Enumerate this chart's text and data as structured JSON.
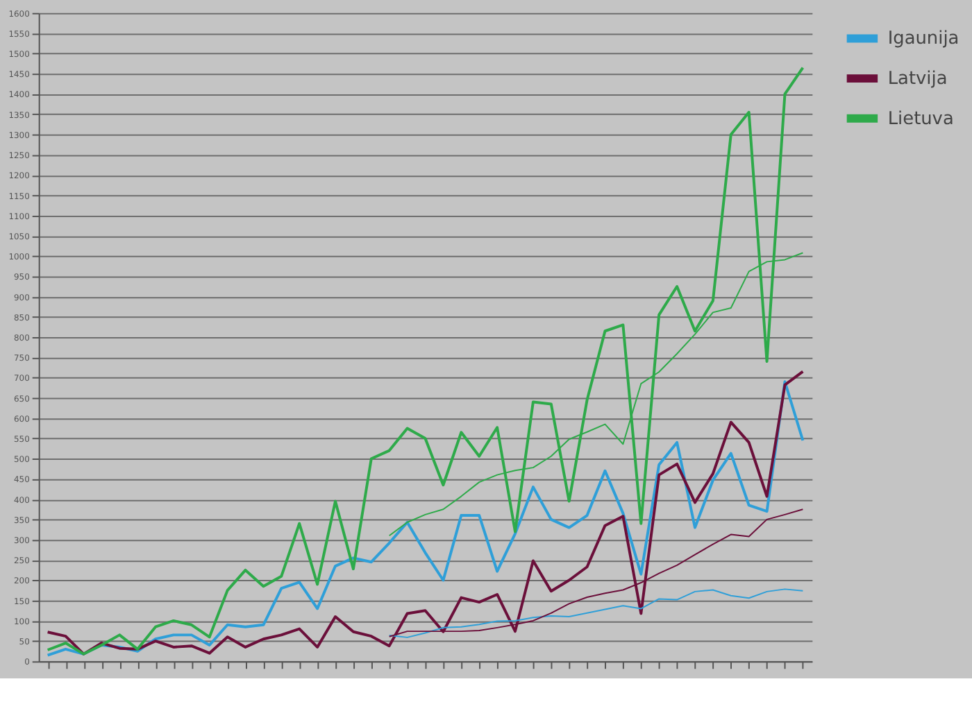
{
  "chart_data": {
    "type": "line",
    "categories": [
      null,
      null,
      null,
      null,
      null,
      null,
      null,
      null,
      null,
      null,
      null,
      null,
      null,
      null,
      null,
      null,
      null,
      null,
      null,
      null,
      null,
      null,
      null,
      null,
      null,
      null,
      null,
      null,
      null,
      null,
      null,
      null,
      null,
      null,
      null,
      null,
      null,
      null,
      null,
      null,
      null,
      null,
      null
    ],
    "series": [
      {
        "name": "Igaunija",
        "color": "#2f9fd8",
        "values": [
          15,
          30,
          18,
          40,
          35,
          25,
          55,
          65,
          65,
          40,
          90,
          85,
          90,
          180,
          195,
          130,
          235,
          255,
          245,
          292,
          343,
          268,
          200,
          360,
          360,
          222,
          315,
          430,
          350,
          330,
          360,
          470,
          365,
          215,
          485,
          540,
          330,
          447,
          513,
          385,
          370,
          690,
          545
        ]
      },
      {
        "name": "Latvija",
        "color": "#6b0f3a",
        "values": [
          72,
          62,
          18,
          45,
          32,
          30,
          50,
          35,
          38,
          20,
          60,
          35,
          55,
          65,
          80,
          35,
          110,
          73,
          62,
          38,
          118,
          125,
          73,
          157,
          146,
          165,
          74,
          248,
          173,
          200,
          233,
          335,
          358,
          118,
          460,
          487,
          392,
          463,
          590,
          540,
          407,
          682,
          715
        ]
      },
      {
        "name": "Lietuva",
        "color": "#2eaa4a",
        "values": [
          28,
          45,
          18,
          40,
          65,
          30,
          85,
          100,
          90,
          60,
          175,
          225,
          185,
          210,
          340,
          190,
          395,
          228,
          500,
          520,
          575,
          550,
          435,
          565,
          506,
          577,
          320,
          640,
          635,
          395,
          645,
          815,
          830,
          340,
          855,
          925,
          815,
          890,
          1300,
          1355,
          740,
          1400,
          1465
        ]
      },
      {
        "color": "#2f9fd8",
        "values": [
          null,
          null,
          null,
          null,
          null,
          null,
          null,
          null,
          null,
          null,
          null,
          null,
          null,
          null,
          null,
          null,
          null,
          null,
          null,
          64,
          59,
          70,
          83,
          85,
          91,
          99,
          100,
          108,
          112,
          110,
          119,
          128,
          137,
          130,
          154,
          152,
          172,
          176,
          162,
          156,
          172,
          178,
          174
        ]
      },
      {
        "color": "#6b0f3a",
        "values": [
          null,
          null,
          null,
          null,
          null,
          null,
          null,
          null,
          null,
          null,
          null,
          null,
          null,
          null,
          null,
          null,
          null,
          null,
          null,
          61,
          74,
          74,
          74,
          74,
          76,
          83,
          91,
          100,
          119,
          142,
          158,
          168,
          176,
          194,
          217,
          237,
          263,
          289,
          313,
          308,
          350,
          362,
          375
        ]
      },
      {
        "color": "#2eaa4a",
        "values": [
          null,
          null,
          null,
          null,
          null,
          null,
          null,
          null,
          null,
          null,
          null,
          null,
          null,
          null,
          null,
          null,
          null,
          null,
          null,
          310,
          343,
          362,
          375,
          407,
          442,
          460,
          471,
          478,
          506,
          548,
          566,
          585,
          536,
          685,
          714,
          759,
          807,
          861,
          872,
          962,
          986,
          991,
          1008
        ]
      }
    ],
    "ylim": [
      0,
      1600
    ],
    "yticks": [
      0,
      50,
      100,
      150,
      200,
      250,
      300,
      350,
      400,
      450,
      500,
      550,
      600,
      650,
      700,
      750,
      800,
      850,
      900,
      950,
      1000,
      1050,
      1100,
      1150,
      1200,
      1250,
      1300,
      1350,
      1400,
      1450,
      1500,
      1550,
      1600
    ],
    "grid": "y",
    "legend": "right",
    "marker": "none",
    "line_style": "solid",
    "tick_labels": "y"
  }
}
